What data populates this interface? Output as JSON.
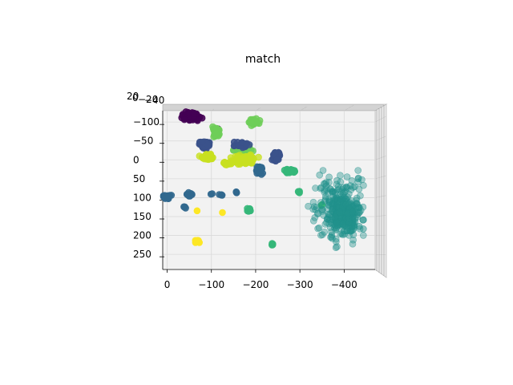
{
  "chart_data": {
    "type": "scatter",
    "projection": "3d",
    "title": "match",
    "xlabel": "",
    "ylabel": "",
    "zlabel": "",
    "grid": true,
    "x_ticks": [
      "0",
      "−100",
      "−200",
      "−300",
      "−400"
    ],
    "x_tick_values": [
      0,
      -100,
      -200,
      -300,
      -400
    ],
    "xlim": [
      10,
      -470
    ],
    "y_ticks": [
      "−100",
      "−50",
      "0",
      "50",
      "100",
      "150",
      "200",
      "250"
    ],
    "y_tick_values": [
      -100,
      -50,
      0,
      50,
      100,
      150,
      200,
      250
    ],
    "ylim": [
      -130,
      290
    ],
    "z_ticks": [
      "20",
      "0",
      "−20",
      "−40"
    ],
    "colors": {
      "purple": "#440154",
      "indigo": "#3b528b",
      "blue": "#31688e",
      "teal": "#21918c",
      "green": "#35b779",
      "lightgreen": "#6ece58",
      "lime": "#c8e020",
      "yellow": "#fde725",
      "pane": "#f2f2f2",
      "grid": "#d9d9d9"
    },
    "clusters": [
      {
        "color": "purple",
        "cx": -55,
        "cy": -115,
        "rx": 20,
        "ry": 10,
        "n": 90,
        "alpha": 0.9,
        "size": 4
      },
      {
        "color": "purple",
        "cx": -110,
        "cy": -80,
        "rx": 5,
        "ry": 4,
        "n": 8,
        "alpha": 0.9,
        "size": 4
      },
      {
        "color": "lightgreen",
        "cx": -195,
        "cy": -100,
        "rx": 12,
        "ry": 8,
        "n": 35,
        "alpha": 0.85,
        "size": 4
      },
      {
        "color": "lightgreen",
        "cx": -110,
        "cy": -75,
        "rx": 9,
        "ry": 12,
        "n": 35,
        "alpha": 0.85,
        "size": 4
      },
      {
        "color": "lightgreen",
        "cx": -170,
        "cy": -25,
        "rx": 20,
        "ry": 12,
        "n": 40,
        "alpha": 0.85,
        "size": 4
      },
      {
        "color": "indigo",
        "cx": -85,
        "cy": -40,
        "rx": 14,
        "ry": 10,
        "n": 45,
        "alpha": 0.9,
        "size": 4
      },
      {
        "color": "indigo",
        "cx": -170,
        "cy": -40,
        "rx": 18,
        "ry": 7,
        "n": 30,
        "alpha": 0.9,
        "size": 4
      },
      {
        "color": "indigo",
        "cx": -248,
        "cy": -10,
        "rx": 9,
        "ry": 13,
        "n": 35,
        "alpha": 0.9,
        "size": 4
      },
      {
        "color": "blue",
        "cx": -210,
        "cy": 25,
        "rx": 9,
        "ry": 14,
        "n": 30,
        "alpha": 0.9,
        "size": 4
      },
      {
        "color": "lime",
        "cx": -90,
        "cy": -8,
        "rx": 14,
        "ry": 8,
        "n": 40,
        "alpha": 0.8,
        "size": 4
      },
      {
        "color": "lime",
        "cx": -175,
        "cy": 0,
        "rx": 28,
        "ry": 12,
        "n": 90,
        "alpha": 0.8,
        "size": 4
      },
      {
        "color": "lime",
        "cx": -135,
        "cy": 10,
        "rx": 8,
        "ry": 5,
        "n": 12,
        "alpha": 0.8,
        "size": 4
      },
      {
        "color": "blue",
        "cx": 0,
        "cy": 98,
        "rx": 8,
        "ry": 7,
        "n": 16,
        "alpha": 0.9,
        "size": 4
      },
      {
        "color": "blue",
        "cx": -50,
        "cy": 92,
        "rx": 8,
        "ry": 6,
        "n": 14,
        "alpha": 0.9,
        "size": 4
      },
      {
        "color": "blue",
        "cx": -40,
        "cy": 125,
        "rx": 3,
        "ry": 3,
        "n": 4,
        "alpha": 0.9,
        "size": 4
      },
      {
        "color": "blue",
        "cx": -122,
        "cy": 92,
        "rx": 4,
        "ry": 4,
        "n": 4,
        "alpha": 0.9,
        "size": 4
      },
      {
        "color": "blue",
        "cx": -155,
        "cy": 85,
        "rx": 3,
        "ry": 3,
        "n": 3,
        "alpha": 0.9,
        "size": 4
      },
      {
        "color": "blue",
        "cx": -100,
        "cy": 90,
        "rx": 2,
        "ry": 2,
        "n": 2,
        "alpha": 0.9,
        "size": 4
      },
      {
        "color": "green",
        "cx": -275,
        "cy": 30,
        "rx": 14,
        "ry": 7,
        "n": 30,
        "alpha": 0.9,
        "size": 4
      },
      {
        "color": "green",
        "cx": -185,
        "cy": 132,
        "rx": 5,
        "ry": 6,
        "n": 10,
        "alpha": 0.9,
        "size": 4
      },
      {
        "color": "green",
        "cx": -238,
        "cy": 223,
        "rx": 3,
        "ry": 3,
        "n": 5,
        "alpha": 0.9,
        "size": 4
      },
      {
        "color": "green",
        "cx": -297,
        "cy": 85,
        "rx": 3,
        "ry": 3,
        "n": 4,
        "alpha": 0.9,
        "size": 4
      },
      {
        "color": "green",
        "cx": -350,
        "cy": 120,
        "rx": 3,
        "ry": 3,
        "n": 3,
        "alpha": 0.9,
        "size": 4
      },
      {
        "color": "yellow",
        "cx": -68,
        "cy": 215,
        "rx": 5,
        "ry": 5,
        "n": 14,
        "alpha": 1,
        "size": 4
      },
      {
        "color": "yellow",
        "cx": -68,
        "cy": 135,
        "rx": 1,
        "ry": 1,
        "n": 1,
        "alpha": 1,
        "size": 4
      },
      {
        "color": "yellow",
        "cx": -125,
        "cy": 140,
        "rx": 1,
        "ry": 1,
        "n": 1,
        "alpha": 1,
        "size": 4
      },
      {
        "color": "teal",
        "cx": -385,
        "cy": 130,
        "rx": 55,
        "ry": 85,
        "n": 260,
        "alpha": 0.4,
        "size": 4
      },
      {
        "color": "teal",
        "cx": -410,
        "cy": 150,
        "rx": 28,
        "ry": 40,
        "n": 120,
        "alpha": 0.5,
        "size": 4
      }
    ]
  }
}
